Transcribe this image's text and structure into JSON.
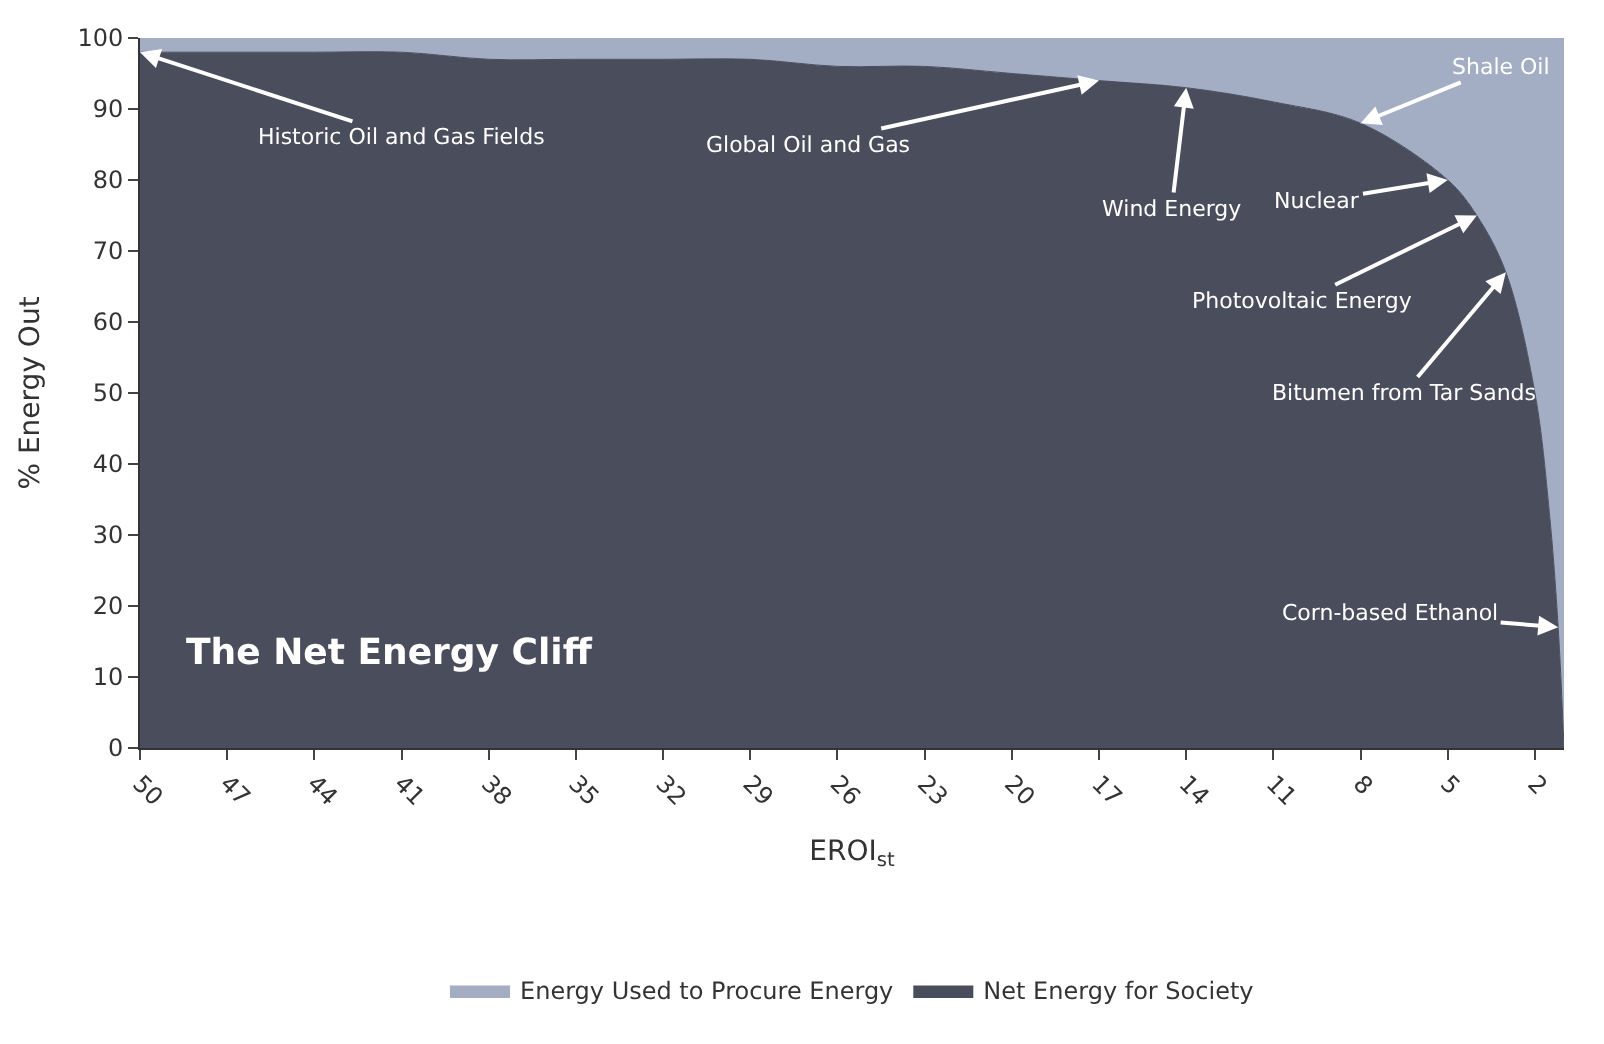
{
  "chart_data": {
    "type": "area",
    "stacked": true,
    "x": [
      50,
      47,
      44,
      41,
      38,
      35,
      32,
      29,
      26,
      23,
      20,
      17,
      14,
      11,
      8,
      5,
      4,
      3,
      2,
      1.5,
      1.2,
      1
    ],
    "series": [
      {
        "name": "Net Energy for Society",
        "color": "#4a4e5c",
        "values": [
          98,
          98,
          98,
          98,
          97,
          97,
          97,
          97,
          96,
          96,
          95,
          94,
          93,
          91,
          88,
          80,
          75,
          67,
          50,
          33,
          17,
          0
        ]
      },
      {
        "name": "Energy Used to Procure Energy",
        "color": "#a3adc4",
        "values": [
          2,
          2,
          2,
          2,
          3,
          3,
          3,
          3,
          4,
          4,
          5,
          6,
          7,
          9,
          12,
          20,
          25,
          33,
          50,
          67,
          83,
          100
        ]
      }
    ],
    "xlabel": "EROI$_{st}$",
    "ylabel": "% Energy Out",
    "xlim": [
      50,
      1
    ],
    "xticks": [
      50,
      47,
      44,
      41,
      38,
      35,
      32,
      29,
      26,
      23,
      20,
      17,
      14,
      11,
      8,
      5,
      2
    ],
    "ylim": [
      0,
      100
    ],
    "yticks": [
      0,
      10,
      20,
      30,
      40,
      50,
      60,
      70,
      80,
      90,
      100
    ],
    "legend": "bottom",
    "annotations": [
      {
        "text": "Historic Oil and Gas Fields",
        "x": 50,
        "y": 98
      },
      {
        "text": "Global Oil and Gas",
        "x": 17,
        "y": 94
      },
      {
        "text": "Wind Energy",
        "x": 14,
        "y": 93
      },
      {
        "text": "Nuclear",
        "x": 5,
        "y": 80
      },
      {
        "text": "Shale Oil",
        "x": 8,
        "y": 88
      },
      {
        "text": "Photovoltaic Energy",
        "x": 4,
        "y": 75
      },
      {
        "text": "Bitumen from Tar Sands",
        "x": 3,
        "y": 67
      },
      {
        "text": "Corn-based Ethanol",
        "x": 1.2,
        "y": 17
      },
      "The Net Energy Cliff"
    ]
  }
}
